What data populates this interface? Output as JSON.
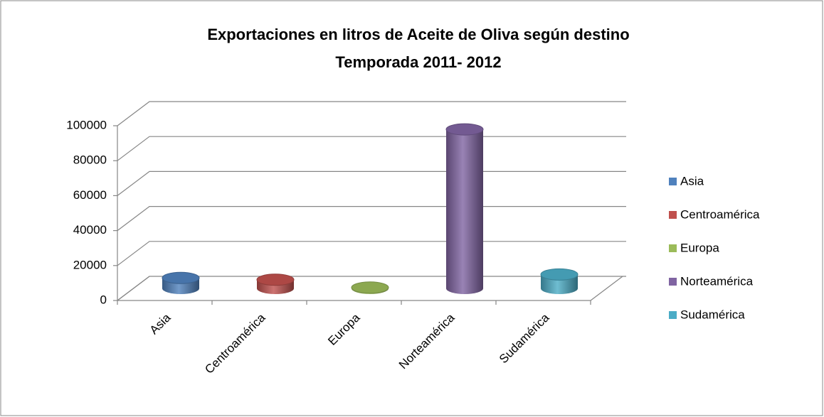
{
  "chart_data": {
    "type": "bar3d",
    "title": "Exportaciones en litros de Aceite de Oliva según destino",
    "subtitle": "Temporada 2011- 2012",
    "categories": [
      "Asia",
      "Centroamérica",
      "Europa",
      "Norteamérica",
      "Sudamérica"
    ],
    "values": [
      6000,
      5000,
      500,
      91000,
      8000
    ],
    "colors": [
      "#4f81bd",
      "#c0504d",
      "#9bbb59",
      "#8064a2",
      "#4bacc6"
    ],
    "ylim": [
      0,
      100000
    ],
    "yticks": [
      0,
      20000,
      40000,
      60000,
      80000,
      100000
    ],
    "grid": true,
    "legend": "right"
  }
}
